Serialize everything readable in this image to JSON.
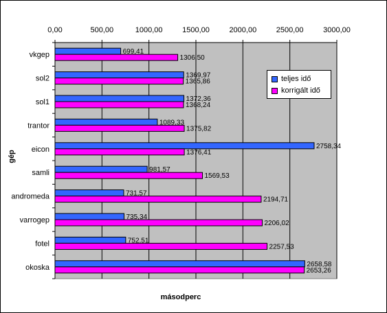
{
  "chart_data": {
    "type": "bar",
    "orientation": "horizontal",
    "categories": [
      "vkgep",
      "sol2",
      "sol1",
      "trantor",
      "eicon",
      "samli",
      "andromeda",
      "varrogep",
      "fotel",
      "okoska"
    ],
    "series": [
      {
        "name": "teljes idő",
        "color": "#3366ff",
        "values": [
          699.41,
          1369.97,
          1372.36,
          1089.33,
          2758.34,
          981.57,
          731.57,
          735.34,
          752.51,
          2658.58
        ],
        "labels": [
          "699,41",
          "1369,97",
          "1372,36",
          "1089,33",
          "2758,34",
          "981,57",
          "731,57",
          "735,34",
          "752,51",
          "2658,58"
        ]
      },
      {
        "name": "korrigált idő",
        "color": "#ff00ff",
        "values": [
          1306.5,
          1365.86,
          1368.24,
          1375.82,
          1376.41,
          1569.53,
          2194.71,
          2206.02,
          2257.53,
          2653.26
        ],
        "labels": [
          "1306,50",
          "1365,86",
          "1368,24",
          "1375,82",
          "1376,41",
          "1569,53",
          "2194,71",
          "2206,02",
          "2257,53",
          "2653,26"
        ]
      }
    ],
    "xlim": [
      0,
      3000
    ],
    "xticks": [
      0,
      500,
      1000,
      1500,
      2000,
      2500,
      3000
    ],
    "xtick_labels": [
      "0,00",
      "500,00",
      "1000,00",
      "1500,00",
      "2000,00",
      "2500,00",
      "3000,00"
    ],
    "xlabel": "másodperc",
    "ylabel": "gép",
    "x_axis_position": "top",
    "grid": true,
    "plot_background": "#c0c0c0",
    "legend_position": "right"
  }
}
